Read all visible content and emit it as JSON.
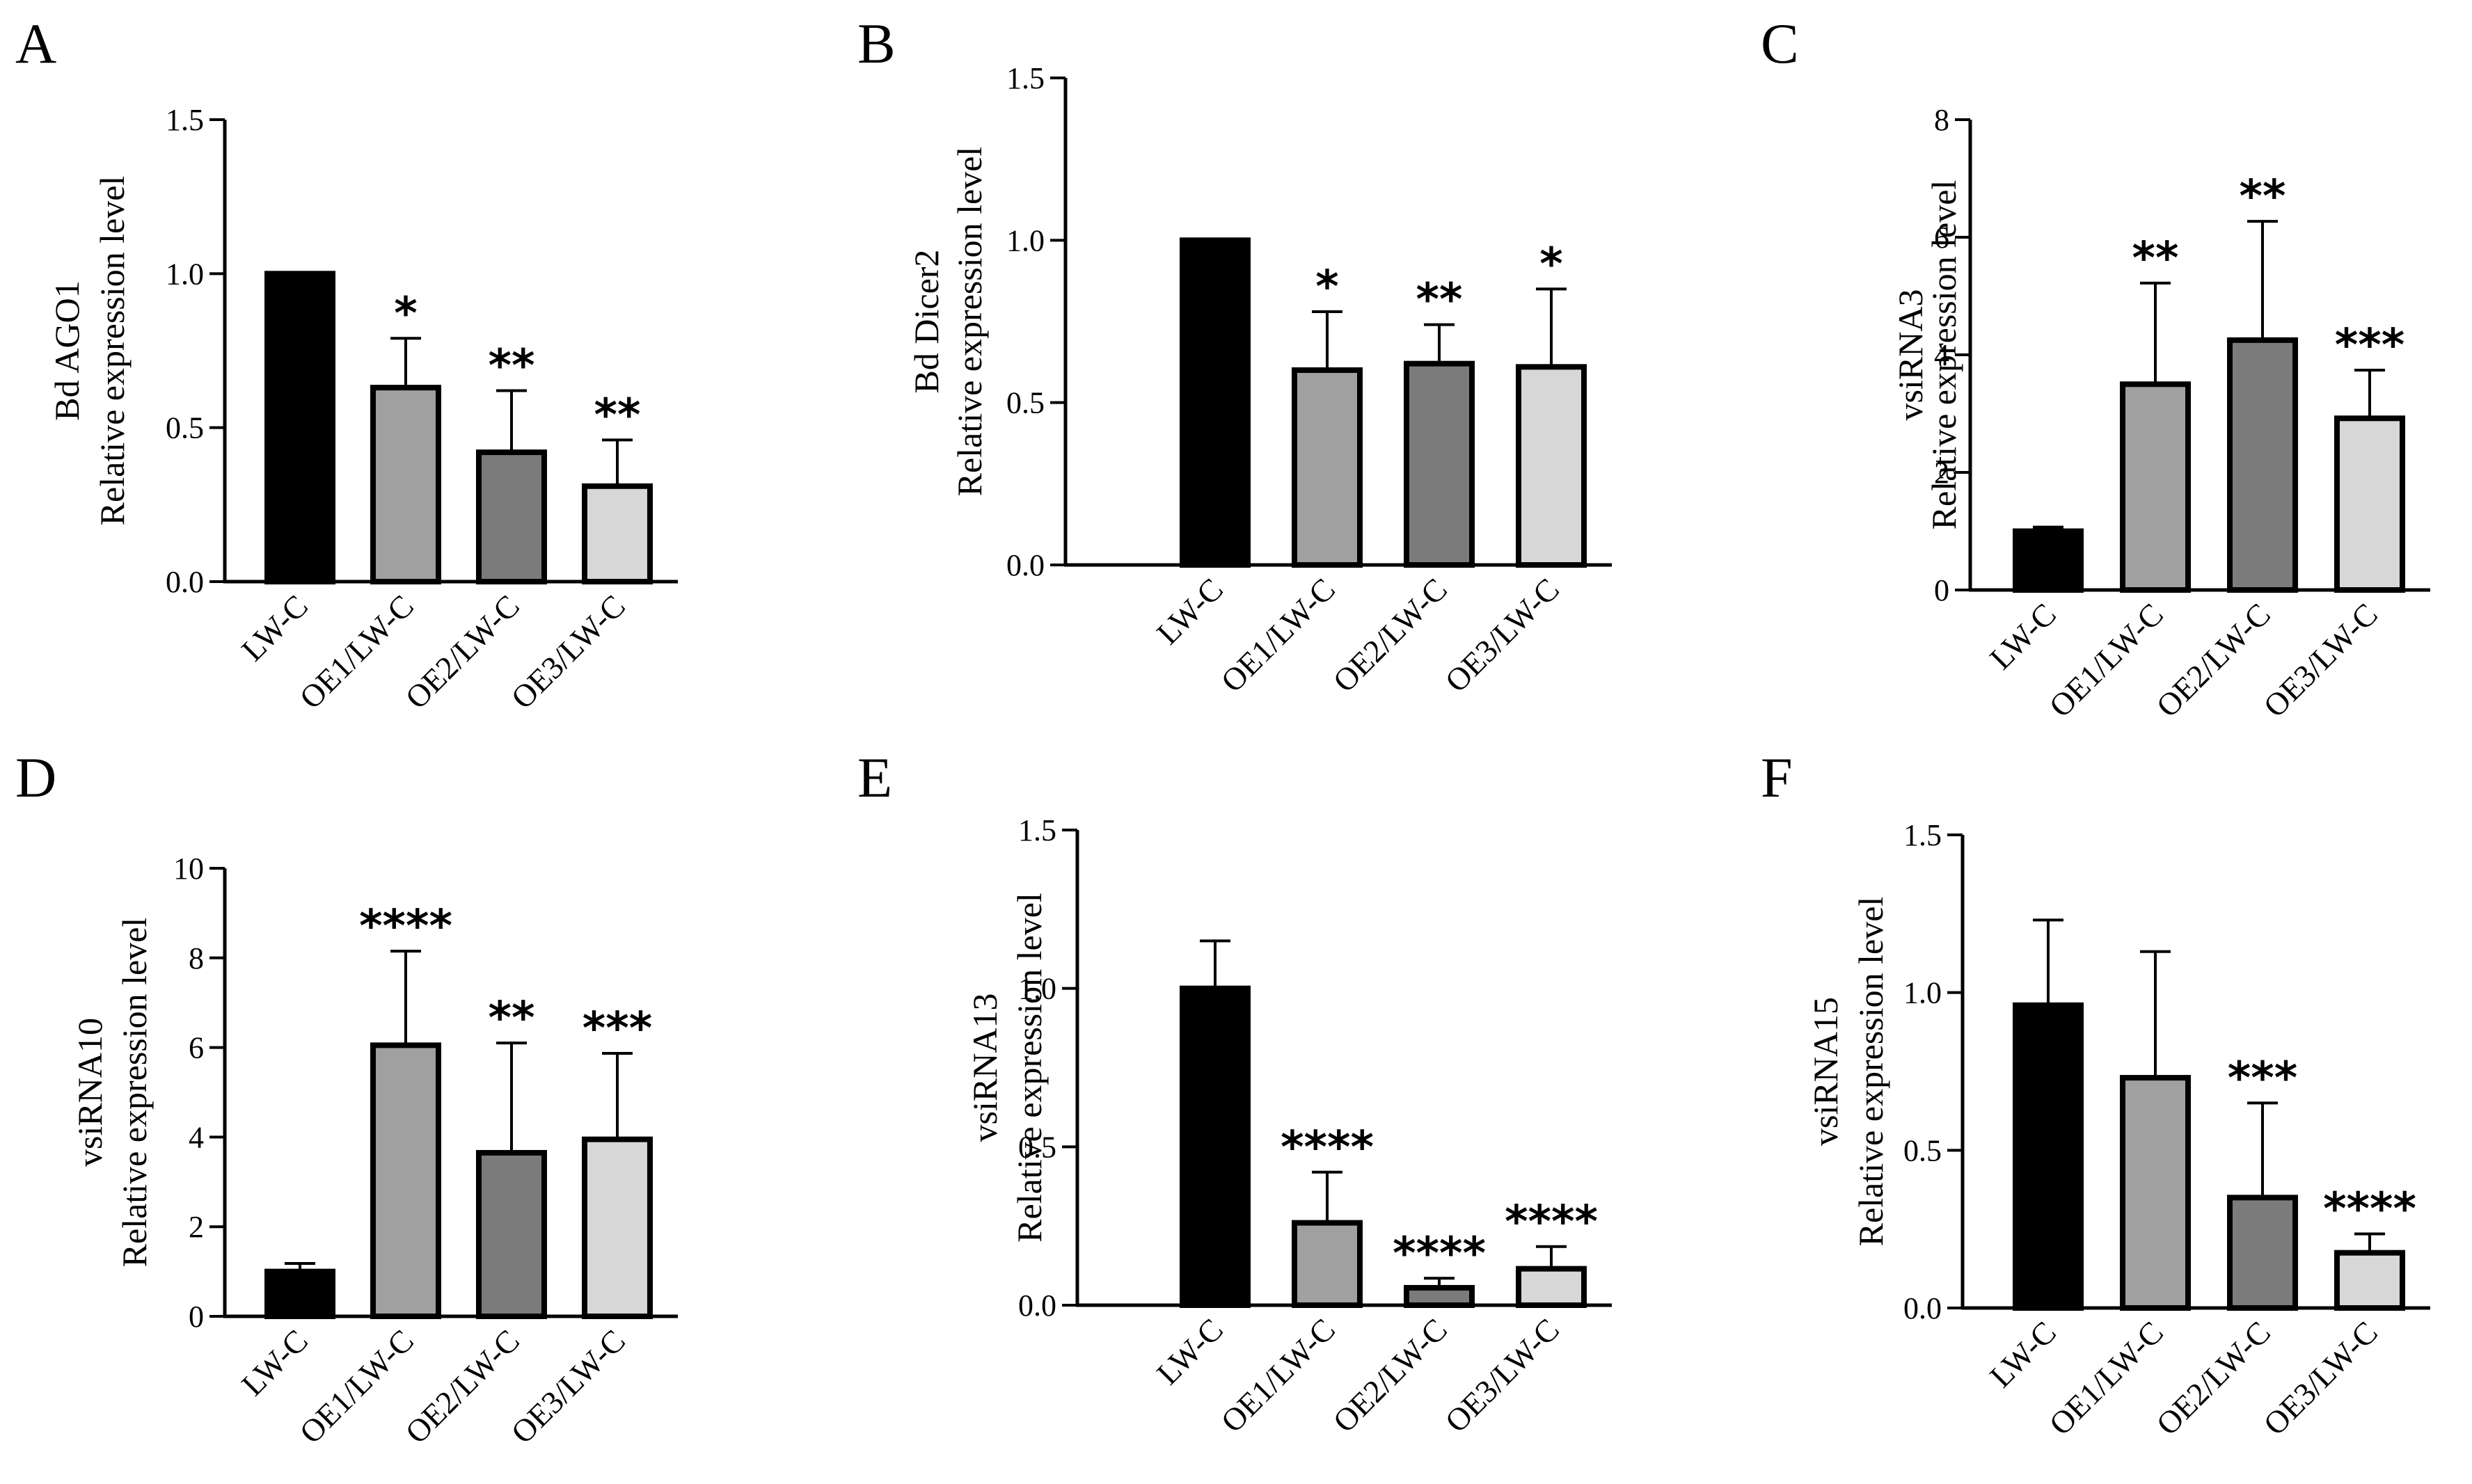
{
  "colors": {
    "LW-C": "#000000",
    "OE1/LW-C": "#a0a0a0",
    "OE2/LW-C": "#7b7b7b",
    "OE3/LW-C": "#d7d7d7",
    "stroke": "#000000"
  },
  "chart_data": [
    {
      "panel": "A",
      "type": "bar",
      "ylabel_lines": [
        "Bd AGO1",
        "Relative expression level"
      ],
      "categories": [
        "LW-C",
        "OE1/LW-C",
        "OE2/LW-C",
        "OE3/LW-C"
      ],
      "values": [
        1.0,
        0.63,
        0.42,
        0.31
      ],
      "errors": [
        0,
        0.16,
        0.2,
        0.15
      ],
      "significance": [
        "",
        "*",
        "**",
        "**"
      ],
      "ylim": [
        0,
        1.5
      ],
      "yticks": [
        0,
        0.5,
        1.0,
        1.5
      ],
      "ytick_labels": [
        "0.0",
        "0.5",
        "1.0",
        "1.5"
      ]
    },
    {
      "panel": "B",
      "type": "bar",
      "ylabel_lines": [
        "Bd Dicer2",
        "Relative expression level"
      ],
      "categories": [
        "LW-C",
        "OE1/LW-C",
        "OE2/LW-C",
        "OE3/LW-C"
      ],
      "values": [
        1.0,
        0.6,
        0.62,
        0.61
      ],
      "errors": [
        0,
        0.18,
        0.12,
        0.24
      ],
      "significance": [
        "",
        "*",
        "**",
        "*"
      ],
      "ylim": [
        0,
        1.5
      ],
      "yticks": [
        0,
        0.5,
        1.0,
        1.5
      ],
      "ytick_labels": [
        "0.0",
        "0.5",
        "1.0",
        "1.5"
      ]
    },
    {
      "panel": "C",
      "type": "bar",
      "ylabel_lines": [
        "vsiRNA3",
        "Relative expression level"
      ],
      "categories": [
        "LW-C",
        "OE1/LW-C",
        "OE2/LW-C",
        "OE3/LW-C"
      ],
      "values": [
        1.0,
        3.5,
        4.25,
        2.92
      ],
      "errors": [
        0.07,
        1.72,
        2.02,
        0.82
      ],
      "significance": [
        "",
        "**",
        "**",
        "***"
      ],
      "ylim": [
        0,
        8
      ],
      "yticks": [
        0,
        2,
        4,
        6,
        8
      ],
      "ytick_labels": [
        "0",
        "2",
        "4",
        "6",
        "8"
      ]
    },
    {
      "panel": "D",
      "type": "bar",
      "ylabel_lines": [
        "vsiRNA10",
        "Relative expression level"
      ],
      "categories": [
        "LW-C",
        "OE1/LW-C",
        "OE2/LW-C",
        "OE3/LW-C"
      ],
      "values": [
        1.0,
        6.05,
        3.65,
        3.95
      ],
      "errors": [
        0.18,
        2.1,
        2.45,
        1.92
      ],
      "significance": [
        "",
        "****",
        "**",
        "***"
      ],
      "ylim": [
        0,
        10
      ],
      "yticks": [
        0,
        2,
        4,
        6,
        8,
        10
      ],
      "ytick_labels": [
        "0",
        "2",
        "4",
        "6",
        "8",
        "10"
      ]
    },
    {
      "panel": "E",
      "type": "bar",
      "ylabel_lines": [
        "vsiRNA13",
        "Relative expression level"
      ],
      "categories": [
        "LW-C",
        "OE1/LW-C",
        "OE2/LW-C",
        "OE3/LW-C"
      ],
      "values": [
        1.0,
        0.26,
        0.055,
        0.115
      ],
      "errors": [
        0.15,
        0.16,
        0.03,
        0.07
      ],
      "significance": [
        "",
        "****",
        "****",
        "****"
      ],
      "ylim": [
        0,
        1.5
      ],
      "yticks": [
        0,
        0.5,
        1.0,
        1.5
      ],
      "ytick_labels": [
        "0.0",
        "0.5",
        "1.0",
        "1.5"
      ]
    },
    {
      "panel": "F",
      "type": "bar",
      "ylabel_lines": [
        "vsiRNA15",
        "Relative expression level"
      ],
      "categories": [
        "LW-C",
        "OE1/LW-C",
        "OE2/LW-C",
        "OE3/LW-C"
      ],
      "values": [
        0.96,
        0.73,
        0.35,
        0.175
      ],
      "errors": [
        0.27,
        0.4,
        0.3,
        0.06
      ],
      "significance": [
        "",
        "",
        "***",
        "****"
      ],
      "ylim": [
        0,
        1.5
      ],
      "yticks": [
        0,
        0.5,
        1.0,
        1.5
      ],
      "ytick_labels": [
        "0.0",
        "0.5",
        "1.0",
        "1.5"
      ]
    }
  ]
}
